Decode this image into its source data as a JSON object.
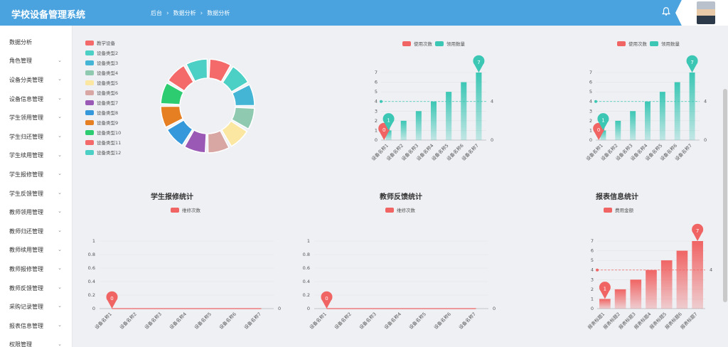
{
  "header": {
    "title": "学校设备管理系统",
    "breadcrumb": [
      "后台",
      "数据分析",
      "数据分析"
    ]
  },
  "sidebar": {
    "items": [
      {
        "label": "数据分析",
        "expandable": false
      },
      {
        "label": "角色管理",
        "expandable": true
      },
      {
        "label": "设备分类管理",
        "expandable": true
      },
      {
        "label": "设备信息管理",
        "expandable": true
      },
      {
        "label": "学生领用管理",
        "expandable": true
      },
      {
        "label": "学生归还管理",
        "expandable": true
      },
      {
        "label": "学生续用管理",
        "expandable": true
      },
      {
        "label": "学生报修管理",
        "expandable": true
      },
      {
        "label": "学生反馈管理",
        "expandable": true
      },
      {
        "label": "教师领用管理",
        "expandable": true
      },
      {
        "label": "教师归还管理",
        "expandable": true
      },
      {
        "label": "教师续用管理",
        "expandable": true
      },
      {
        "label": "教师报修管理",
        "expandable": true
      },
      {
        "label": "教师反馈管理",
        "expandable": true
      },
      {
        "label": "采购记录管理",
        "expandable": true
      },
      {
        "label": "报表信息管理",
        "expandable": true
      },
      {
        "label": "权限管理",
        "expandable": true
      }
    ]
  },
  "colors": {
    "header": "#4aa3df",
    "teal": "#3cc7b5",
    "red": "#f06464",
    "pie": [
      "#f46a6a",
      "#4ccfc4",
      "#45b5d6",
      "#8fcab0",
      "#fbe7a1",
      "#d8a7a4",
      "#9b59b6",
      "#3498db",
      "#e67e22",
      "#2ecc71",
      "#f46a6a",
      "#4ccfc4"
    ]
  },
  "charts": {
    "pie": {
      "title": "",
      "chart_data": {
        "type": "pie",
        "categories": [
          "教学设备",
          "设备类型2",
          "设备类型3",
          "设备类型4",
          "设备类型5",
          "设备类型6",
          "设备类型7",
          "设备类型8",
          "设备类型9",
          "设备类型10",
          "设备类型11",
          "设备类型12"
        ],
        "values": [
          1,
          1,
          1,
          1,
          1,
          1,
          1,
          1,
          1,
          1,
          1,
          1
        ]
      }
    },
    "bar1": {
      "legend": [
        "使用次数",
        "领用数量"
      ],
      "chart_data": {
        "type": "bar",
        "categories": [
          "设备名称1",
          "设备名称2",
          "设备名称3",
          "设备名称4",
          "设备名称5",
          "设备名称6",
          "设备名称7"
        ],
        "values": [
          1,
          2,
          3,
          4,
          5,
          6,
          7
        ],
        "ylim": [
          0,
          7
        ],
        "yticks": [
          "0",
          "1",
          "2",
          "3",
          "4",
          "5",
          "6",
          "7"
        ],
        "markers": [
          {
            "label": "0",
            "index": 0,
            "value": 0,
            "color": "red"
          },
          {
            "label": "1",
            "index": 0,
            "value": 1,
            "color": "teal"
          },
          {
            "label": "7",
            "index": 6,
            "value": 7,
            "color": "teal"
          }
        ],
        "avg_line": {
          "value": 4,
          "label": "4",
          "end_label": "0"
        }
      }
    },
    "bar2": {
      "legend": [
        "使用次数",
        "领用数量"
      ],
      "chart_data": {
        "type": "bar",
        "categories": [
          "设备名称1",
          "设备名称2",
          "设备名称3",
          "设备名称4",
          "设备名称5",
          "设备名称6",
          "设备名称7"
        ],
        "values": [
          1,
          2,
          3,
          4,
          5,
          6,
          7
        ],
        "ylim": [
          0,
          7
        ],
        "yticks": [
          "0",
          "1",
          "2",
          "3",
          "4",
          "5",
          "6",
          "7"
        ],
        "markers": [
          {
            "label": "0",
            "index": 0,
            "value": 0,
            "color": "red"
          },
          {
            "label": "1",
            "index": 0,
            "value": 1,
            "color": "teal"
          },
          {
            "label": "7",
            "index": 6,
            "value": 7,
            "color": "teal"
          }
        ],
        "avg_line": {
          "value": 4,
          "label": "4",
          "end_label": "0"
        }
      }
    },
    "line1": {
      "title": "学生报修统计",
      "legend": [
        "维修次数"
      ],
      "chart_data": {
        "type": "line",
        "categories": [
          "设备名称1",
          "设备名称2",
          "设备名称3",
          "设备名称4",
          "设备名称5",
          "设备名称6",
          "设备名称7"
        ],
        "values": [
          0,
          0,
          0,
          0,
          0,
          0,
          0
        ],
        "ylim": [
          0,
          1
        ],
        "yticks": [
          "0",
          "0.2",
          "0.4",
          "0.6",
          "0.8",
          "1"
        ],
        "markers": [
          {
            "label": "0",
            "index": 0,
            "value": 0,
            "color": "red"
          }
        ],
        "end_label": "0"
      }
    },
    "line2": {
      "title": "教师反馈统计",
      "legend": [
        "维修次数"
      ],
      "chart_data": {
        "type": "line",
        "categories": [
          "设备名称1",
          "设备名称2",
          "设备名称3",
          "设备名称4",
          "设备名称5",
          "设备名称6",
          "设备名称7"
        ],
        "values": [
          0,
          0,
          0,
          0,
          0,
          0,
          0
        ],
        "ylim": [
          0,
          1
        ],
        "yticks": [
          "0",
          "0.2",
          "0.4",
          "0.6",
          "0.8",
          "1"
        ],
        "markers": [
          {
            "label": "0",
            "index": 0,
            "value": 0,
            "color": "red"
          }
        ],
        "end_label": "0"
      }
    },
    "bar3": {
      "title": "报表信息统计",
      "legend": [
        "费用金额"
      ],
      "chart_data": {
        "type": "bar",
        "categories": [
          "报表标题1",
          "报表标题2",
          "报表标题3",
          "报表标题4",
          "报表标题5",
          "报表标题6",
          "报表标题7"
        ],
        "values": [
          1,
          2,
          3,
          4,
          5,
          6,
          7
        ],
        "ylim": [
          0,
          7
        ],
        "yticks": [
          "0",
          "1",
          "2",
          "3",
          "4",
          "5",
          "6",
          "7"
        ],
        "markers": [
          {
            "label": "1",
            "index": 0,
            "value": 1,
            "color": "red"
          },
          {
            "label": "7",
            "index": 6,
            "value": 7,
            "color": "red"
          }
        ],
        "avg_line": {
          "value": 4,
          "label": "4"
        }
      }
    }
  }
}
